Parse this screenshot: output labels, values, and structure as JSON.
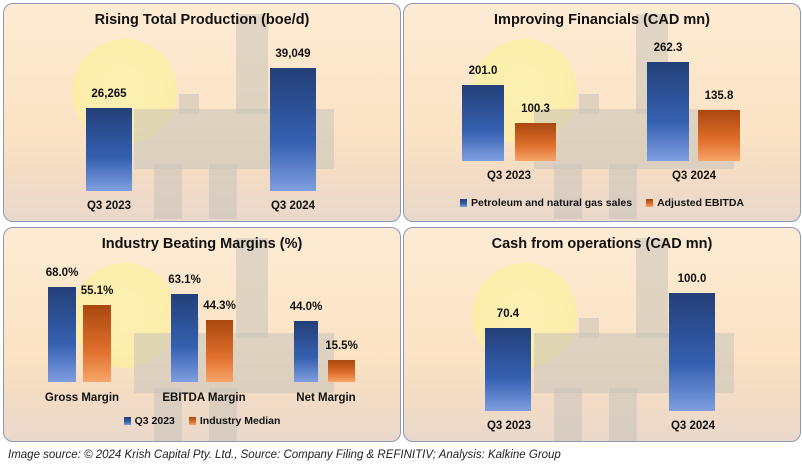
{
  "colors": {
    "series_blue": "#3560b0",
    "series_orange": "#e0702d"
  },
  "chart_data": [
    {
      "type": "bar",
      "title": "Rising Total Production (boe/d)",
      "categories": [
        "Q3 2023",
        "Q3 2024"
      ],
      "series": [
        {
          "name": "Total Production",
          "values": [
            26265,
            39049
          ],
          "labels": [
            "26,265",
            "39,049"
          ],
          "color": "blue"
        }
      ]
    },
    {
      "type": "bar",
      "title": "Improving Financials (CAD mn)",
      "categories": [
        "Q3 2023",
        "Q3 2024"
      ],
      "series": [
        {
          "name": "Petroleum and natural gas sales",
          "values": [
            201.0,
            262.3
          ],
          "labels": [
            "201.0",
            "262.3"
          ],
          "color": "blue"
        },
        {
          "name": "Adjusted EBITDA",
          "values": [
            100.3,
            135.8
          ],
          "labels": [
            "100.3",
            "135.8"
          ],
          "color": "orange"
        }
      ],
      "legend": "bottom"
    },
    {
      "type": "bar",
      "title": "Industry Beating Margins (%)",
      "categories": [
        "Gross Margin",
        "EBITDA Margin",
        "Net Margin"
      ],
      "series": [
        {
          "name": "Q3 2023",
          "values": [
            68.0,
            63.1,
            44.0
          ],
          "labels": [
            "68.0%",
            "63.1%",
            "44.0%"
          ],
          "color": "blue"
        },
        {
          "name": "Industry Median",
          "values": [
            55.1,
            44.3,
            15.5
          ],
          "labels": [
            "55.1%",
            "44.3%",
            "15.5%"
          ],
          "color": "orange"
        }
      ],
      "legend": "bottom"
    },
    {
      "type": "bar",
      "title": "Cash from operations (CAD mn)",
      "categories": [
        "Q3 2023",
        "Q3 2024"
      ],
      "series": [
        {
          "name": "Cash from operations",
          "values": [
            70.4,
            100.0
          ],
          "labels": [
            "70.4",
            "100.0"
          ],
          "color": "blue"
        }
      ]
    }
  ],
  "caption": "Image source: © 2024 Krish Capital Pty. Ltd., Source: Company Filing & REFINITIV; Analysis: Kalkine Group"
}
